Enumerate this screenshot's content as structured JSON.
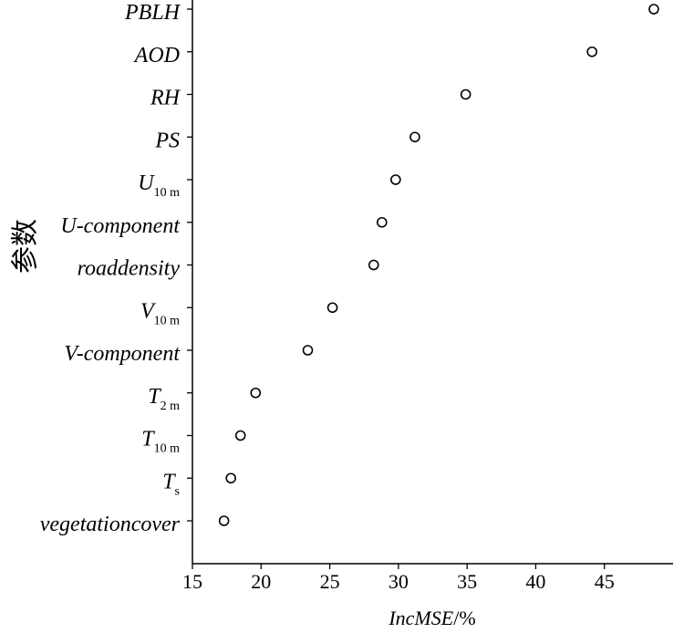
{
  "chart_data": {
    "type": "scatter",
    "categories": [
      {
        "label": "PBLH"
      },
      {
        "label": "AOD"
      },
      {
        "label": "RH"
      },
      {
        "label": "PS"
      },
      {
        "label": "U",
        "sub": "10 m"
      },
      {
        "label": "U-component"
      },
      {
        "label": "roaddensity"
      },
      {
        "label": "V",
        "sub": "10 m"
      },
      {
        "label": "V-component"
      },
      {
        "label": "T",
        "sub": "2 m"
      },
      {
        "label": "T",
        "sub": "10 m"
      },
      {
        "label": "T",
        "sub": "s"
      },
      {
        "label": "vegetationcover"
      }
    ],
    "values": [
      48.6,
      44.1,
      34.9,
      31.2,
      29.8,
      28.8,
      28.2,
      25.2,
      23.4,
      19.6,
      18.5,
      17.8,
      17.3
    ],
    "xlabel": "IncMSE/%",
    "ylabel": "参数",
    "xlim": [
      15,
      50
    ],
    "xticks": [
      15,
      20,
      25,
      30,
      35,
      40,
      45
    ],
    "grid": false,
    "legend": "none",
    "marker": "open-circle",
    "colors": {
      "axis": "#000000",
      "text": "#000000",
      "marker_stroke": "#000000",
      "marker_fill": "#ffffff"
    }
  }
}
